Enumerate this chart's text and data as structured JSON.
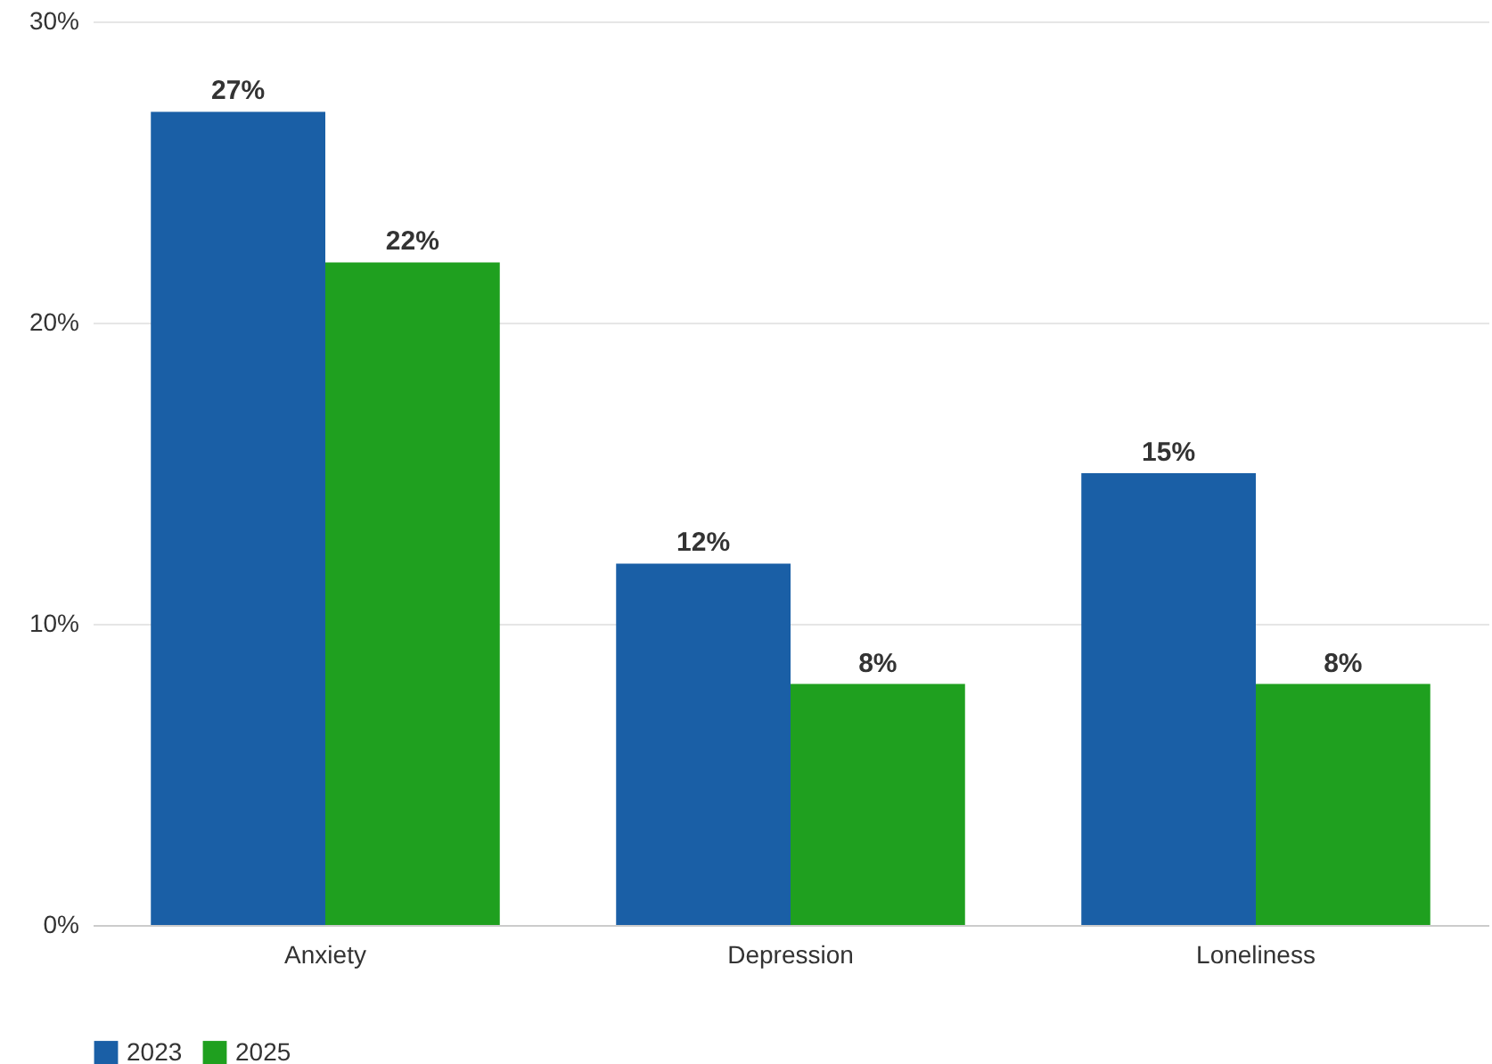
{
  "chart_data": {
    "type": "bar",
    "categories": [
      "Anxiety",
      "Depression",
      "Loneliness"
    ],
    "series": [
      {
        "name": "2023",
        "color": "#1a5fa6",
        "values": [
          27,
          12,
          15
        ],
        "value_labels": [
          "27%",
          "12%",
          "15%"
        ]
      },
      {
        "name": "2025",
        "color": "#1fa01f",
        "values": [
          22,
          8,
          8
        ],
        "value_labels": [
          "22%",
          "8%",
          "8%"
        ]
      }
    ],
    "ylim": [
      0,
      30
    ],
    "yticks": [
      {
        "value": 0,
        "label": "0%"
      },
      {
        "value": 10,
        "label": "10%"
      },
      {
        "value": 20,
        "label": "20%"
      },
      {
        "value": 30,
        "label": "30%"
      }
    ],
    "grid": "y",
    "legend": "bottom"
  }
}
